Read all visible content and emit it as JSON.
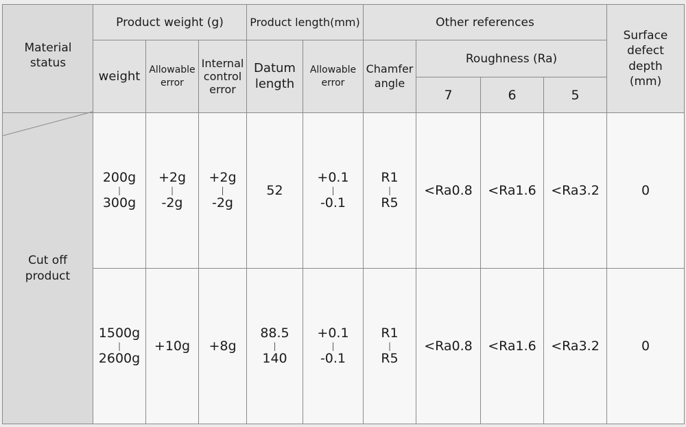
{
  "header": {
    "material_status": "Material\nstatus",
    "product_weight": "Product weight (g)",
    "product_length": "Product length(mm)",
    "other_references": "Other references",
    "surface_defect_depth": "Surface\ndefect\ndepth\n(mm)",
    "weight": "weight",
    "allowable_error_weight": "Allowable\nerror",
    "internal_control_error": "Internal\ncontrol\nerror",
    "datum_length": "Datum\nlength",
    "allowable_error_length": "Allowable\nerror",
    "chamfer_angle": "Chamfer\nangle",
    "roughness": "Roughness (Ra)",
    "grade_7": "7",
    "grade_6": "6",
    "grade_5": "5"
  },
  "left": {
    "cut_off_product": "Cut off\nproduct"
  },
  "separator": "|",
  "rows": [
    {
      "weight_top": "200g",
      "weight_bottom": "300g",
      "allow_top": "+2g",
      "allow_bottom": "-2g",
      "internal_top": "+2g",
      "internal_bottom": "-2g",
      "datum": "52",
      "len_allow_top": "+0.1",
      "len_allow_bottom": "-0.1",
      "chamfer_top": "R1",
      "chamfer_bottom": "R5",
      "ra7": "<Ra0.8",
      "ra6": "<Ra1.6",
      "ra5": "<Ra3.2",
      "defect": "0"
    },
    {
      "weight_top": "1500g",
      "weight_bottom": "2600g",
      "allow": "+10g",
      "internal": "+8g",
      "datum_top": "88.5",
      "datum_bottom": "140",
      "len_allow_top": "+0.1",
      "len_allow_bottom": "-0.1",
      "chamfer_top": "R1",
      "chamfer_bottom": "R5",
      "ra7": "<Ra0.8",
      "ra6": "<Ra1.6",
      "ra5": "<Ra3.2",
      "defect": "0"
    }
  ]
}
